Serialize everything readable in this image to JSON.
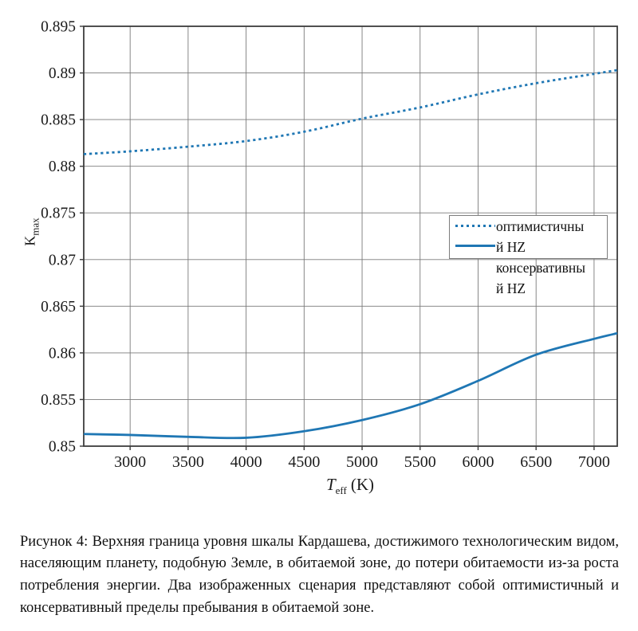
{
  "figure": {
    "caption": "Рисунок 4: Верхняя граница уровня шкалы Кардашева, достижимого технологическим видом, населяющим планету, подобную Земле, в обитаемой зоне, до потери обитаемости из-за роста потребления энергии. Два изображенных сценария представляют собой оптимистичный и консервативный пределы пребывания в обитаемой зоне."
  },
  "chart_data": {
    "type": "line",
    "title": "",
    "xlabel": "T_eff (K)",
    "ylabel": "K_max",
    "xlabel_main": "T",
    "xlabel_sub": "eff",
    "xlabel_unit": "(K)",
    "ylabel_main": "K",
    "ylabel_sub": "max",
    "xlim": [
      2600,
      7200
    ],
    "ylim": [
      0.85,
      0.895
    ],
    "grid": true,
    "x_ticks": [
      3000,
      3500,
      4000,
      4500,
      5000,
      5500,
      6000,
      6500,
      7000
    ],
    "y_ticks": [
      0.85,
      0.855,
      0.86,
      0.865,
      0.87,
      0.875,
      0.88,
      0.885,
      0.89,
      0.895
    ],
    "y_tick_labels": [
      "0.85",
      "0.855",
      "0.86",
      "0.865",
      "0.87",
      "0.875",
      "0.88",
      "0.885",
      "0.89",
      "0.895"
    ],
    "x": [
      2600,
      3000,
      3500,
      4000,
      4500,
      5000,
      5500,
      6000,
      6500,
      7000,
      7200
    ],
    "series": [
      {
        "name": "оптимистичный HZ",
        "style": "dotted",
        "color": "#1f77b4",
        "values": [
          0.8813,
          0.8816,
          0.8821,
          0.8827,
          0.8837,
          0.8851,
          0.8863,
          0.8877,
          0.8889,
          0.8899,
          0.8903
        ]
      },
      {
        "name": "консервативный HZ",
        "style": "solid",
        "color": "#1f77b4",
        "values": [
          0.8513,
          0.8512,
          0.851,
          0.8509,
          0.8516,
          0.8528,
          0.8545,
          0.857,
          0.8598,
          0.8615,
          0.8621
        ]
      }
    ],
    "legend_position": "center-right",
    "legend_lines": [
      "оптимистичны",
      "й HZ",
      "консервативны",
      "й HZ"
    ],
    "colors": {
      "accent": "#1f77b4",
      "grid": "#7a7a7a",
      "frame": "#3c3c3c",
      "tick_text": "#1c1c1c"
    }
  }
}
